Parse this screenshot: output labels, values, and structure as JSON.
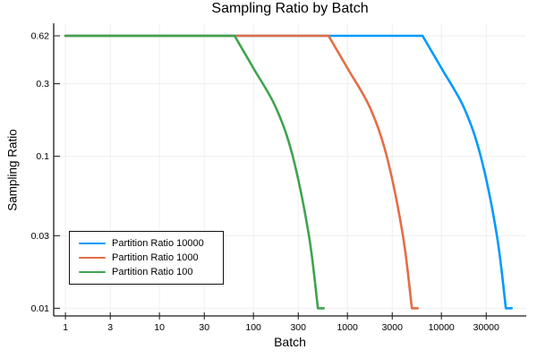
{
  "chart_data": {
    "type": "line",
    "title": "Sampling Ratio by Batch",
    "xlabel": "Batch",
    "ylabel": "Sampling Ratio",
    "x_scale": "log",
    "y_scale": "log",
    "xlim": [
      0.75,
      80000
    ],
    "ylim": [
      0.0089,
      0.75
    ],
    "x_ticks": [
      1,
      3,
      10,
      30,
      100,
      300,
      1000,
      3000,
      10000,
      30000
    ],
    "x_tick_labels": [
      "1",
      "3",
      "10",
      "30",
      "100",
      "300",
      "1000",
      "3000",
      "10000",
      "30000"
    ],
    "y_ticks": [
      0.62,
      0.3,
      0.1,
      0.03,
      0.01
    ],
    "y_tick_labels": [
      "0.62",
      "0.3",
      "0.1",
      "0.03",
      "0.01"
    ],
    "grid": true,
    "legend_position": "bottom-left",
    "colors": {
      "blue": "#009AFA",
      "orange": "#E36E46",
      "green": "#3EA44E",
      "grid": "#efefef",
      "axis": "#1b1b1b"
    },
    "series": [
      {
        "name": "Partition Ratio 10000",
        "color": "#009AFA",
        "points": [
          [
            1,
            0.62
          ],
          [
            6300,
            0.62
          ],
          [
            10000,
            0.38
          ],
          [
            17300,
            0.21
          ],
          [
            26200,
            0.1
          ],
          [
            39000,
            0.03
          ],
          [
            48500,
            0.01
          ],
          [
            56000,
            0.01
          ]
        ]
      },
      {
        "name": "Partition Ratio 1000",
        "color": "#E36E46",
        "points": [
          [
            1,
            0.62
          ],
          [
            630,
            0.62
          ],
          [
            1000,
            0.38
          ],
          [
            1730,
            0.21
          ],
          [
            2620,
            0.1
          ],
          [
            3900,
            0.03
          ],
          [
            4850,
            0.01
          ],
          [
            5600,
            0.01
          ]
        ]
      },
      {
        "name": "Partition Ratio 100",
        "color": "#3EA44E",
        "points": [
          [
            1,
            0.62
          ],
          [
            63,
            0.62
          ],
          [
            100,
            0.38
          ],
          [
            173,
            0.21
          ],
          [
            262,
            0.1
          ],
          [
            390,
            0.03
          ],
          [
            485,
            0.01
          ],
          [
            560,
            0.01
          ]
        ]
      }
    ]
  }
}
